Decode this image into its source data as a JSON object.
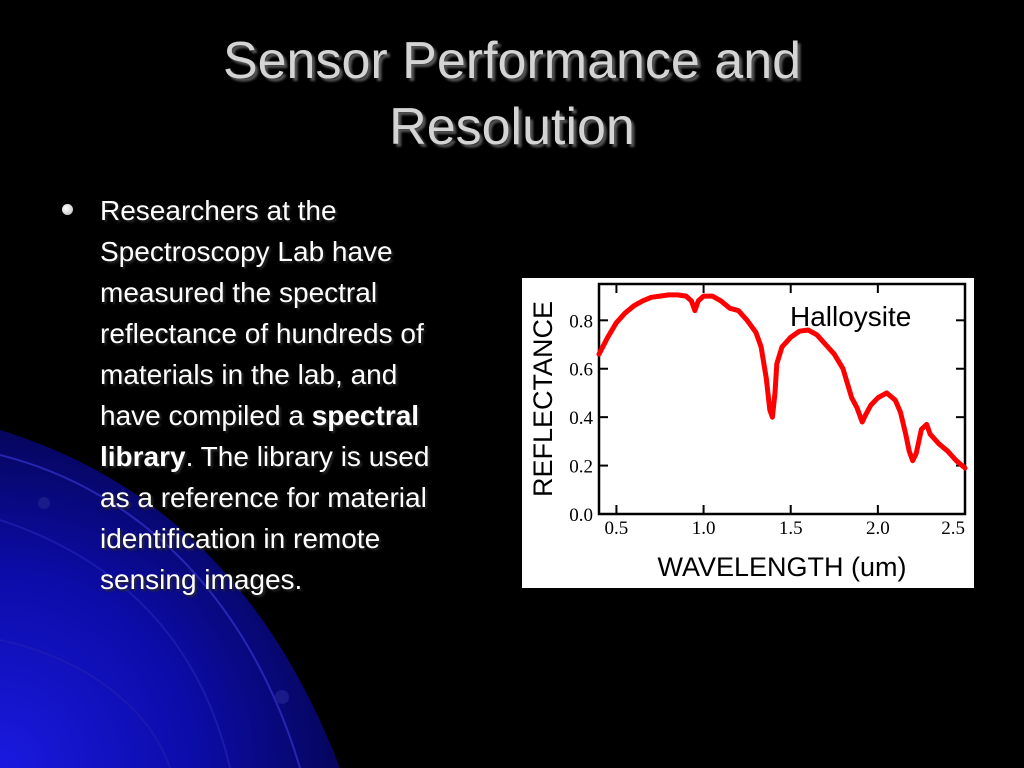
{
  "slide": {
    "title_line1": "Sensor Performance and",
    "title_line2": "Resolution",
    "bullet": {
      "text_before": "Researchers at the Spectroscopy Lab have measured the spectral reflectance of hundreds of materials in the lab, and have compiled a ",
      "bold_text": "spectral library",
      "text_after": ". The library is used as a reference for material identification in remote sensing images."
    }
  },
  "colors": {
    "background": "#000000",
    "title": "#d4d4d4",
    "body_text": "#ffffff",
    "curve": "#ff0000"
  },
  "chart_data": {
    "type": "line",
    "xlabel": "WAVELENGTH (um)",
    "ylabel": "REFLECTANCE",
    "legend_label": "Halloysite",
    "xlim": [
      0.4,
      2.5
    ],
    "ylim": [
      0.0,
      0.95
    ],
    "x_ticks": [
      {
        "value": 0.5,
        "label": "0.5"
      },
      {
        "value": 1.0,
        "label": "1.0"
      },
      {
        "value": 1.5,
        "label": "1.5"
      },
      {
        "value": 2.0,
        "label": "2.0"
      },
      {
        "value": 2.5,
        "label": "2.5"
      }
    ],
    "y_ticks": [
      {
        "value": 0.0,
        "label": "0.0"
      },
      {
        "value": 0.2,
        "label": "0.2"
      },
      {
        "value": 0.4,
        "label": "0.4"
      },
      {
        "value": 0.6,
        "label": "0.6"
      },
      {
        "value": 0.8,
        "label": "0.8"
      }
    ],
    "series": [
      {
        "x": [
          0.4,
          0.45,
          0.5,
          0.55,
          0.6,
          0.65,
          0.7,
          0.75,
          0.8,
          0.85,
          0.9,
          0.93,
          0.95,
          0.97,
          1.0,
          1.05,
          1.1,
          1.15,
          1.2,
          1.25,
          1.3,
          1.33,
          1.36,
          1.38,
          1.395,
          1.41,
          1.42,
          1.45,
          1.5,
          1.55,
          1.6,
          1.65,
          1.7,
          1.75,
          1.8,
          1.85,
          1.88,
          1.9,
          1.91,
          1.93,
          1.96,
          2.0,
          2.05,
          2.1,
          2.13,
          2.16,
          2.18,
          2.2,
          2.22,
          2.25,
          2.28,
          2.3,
          2.35,
          2.4,
          2.45,
          2.5
        ],
        "y": [
          0.66,
          0.73,
          0.79,
          0.83,
          0.86,
          0.88,
          0.895,
          0.9,
          0.905,
          0.905,
          0.9,
          0.88,
          0.84,
          0.88,
          0.9,
          0.9,
          0.88,
          0.85,
          0.84,
          0.8,
          0.75,
          0.69,
          0.56,
          0.43,
          0.4,
          0.5,
          0.62,
          0.69,
          0.73,
          0.755,
          0.76,
          0.74,
          0.7,
          0.66,
          0.6,
          0.48,
          0.44,
          0.4,
          0.38,
          0.41,
          0.45,
          0.48,
          0.5,
          0.47,
          0.42,
          0.33,
          0.26,
          0.22,
          0.25,
          0.35,
          0.37,
          0.33,
          0.29,
          0.26,
          0.22,
          0.19
        ]
      }
    ]
  }
}
